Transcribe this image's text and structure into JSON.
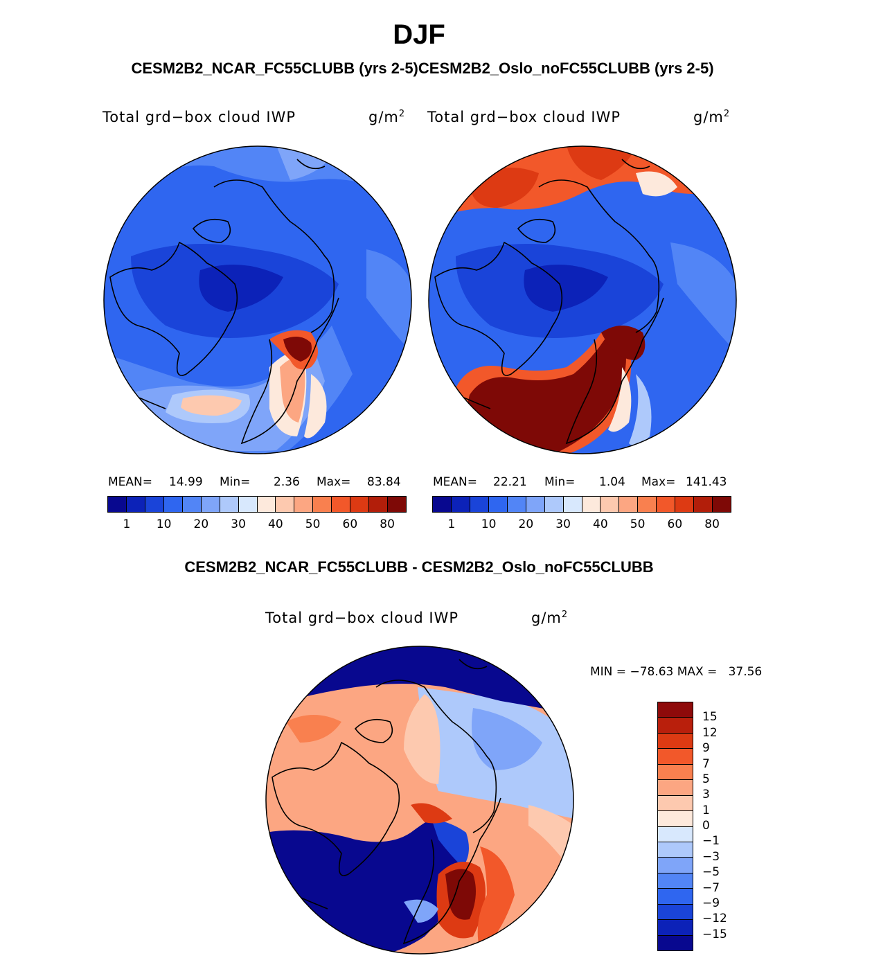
{
  "title": "DJF",
  "subtitle": "CESM2B2_NCAR_FC55CLUBB (yrs 2-5)CESM2B2_Oslo_noFC55CLUBB (yrs 2-5)",
  "diff_title": "CESM2B2_NCAR_FC55CLUBB - CESM2B2_Oslo_noFC55CLUBB",
  "panels": [
    {
      "variable": "Total grd−box cloud IWP",
      "units_base": "g/m",
      "units_exp": "2",
      "mean_label": "MEAN=",
      "mean": "14.99",
      "min_label": "Min=",
      "min": "2.36",
      "max_label": "Max=",
      "max": "83.84"
    },
    {
      "variable": "Total grd−box cloud IWP",
      "units_base": "g/m",
      "units_exp": "2",
      "mean_label": "MEAN=",
      "mean": "22.21",
      "min_label": "Min=",
      "min": "1.04",
      "max_label": "Max=",
      "max": "141.43"
    }
  ],
  "diff_panel": {
    "variable": "Total grd−box cloud IWP",
    "units_base": "g/m",
    "units_exp": "2",
    "minmax_text": "MIN = −78.63 MAX =   37.56"
  },
  "colorbar_h": {
    "colors": [
      "#08088f",
      "#0c22b8",
      "#1a44d9",
      "#2f66f0",
      "#5285f6",
      "#7fa5f9",
      "#aec9fb",
      "#d8e8fd",
      "#fde9dc",
      "#fdc9af",
      "#fca682",
      "#f9804f",
      "#f2582a",
      "#dd3a13",
      "#b21e0a",
      "#7e0906"
    ],
    "ticks": [
      "1",
      "10",
      "20",
      "30",
      "40",
      "50",
      "60",
      "80"
    ]
  },
  "colorbar_v": {
    "colors": [
      "#8e0a0a",
      "#b91f0c",
      "#dd3a13",
      "#f2582a",
      "#f9804f",
      "#fca682",
      "#fdc9af",
      "#fde9dc",
      "#d8e8fd",
      "#aec9fb",
      "#7fa5f9",
      "#5285f6",
      "#2f66f0",
      "#1a44d9",
      "#0c22b8",
      "#08088f"
    ],
    "ticks": [
      "15",
      "12",
      "9",
      "7",
      "5",
      "3",
      "1",
      "0",
      "−1",
      "−3",
      "−5",
      "−7",
      "−9",
      "−12",
      "−15"
    ]
  }
}
